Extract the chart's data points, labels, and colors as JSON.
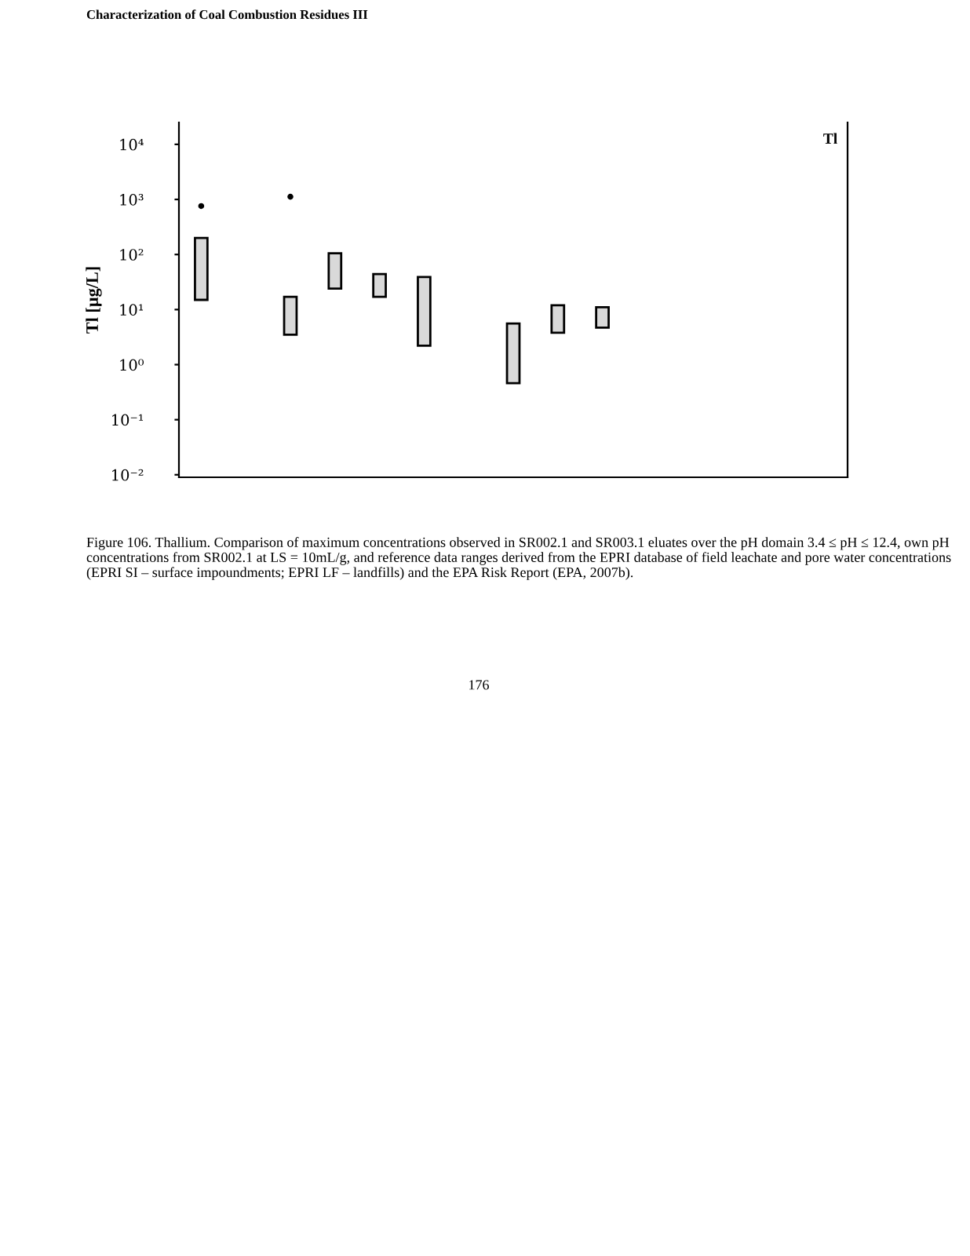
{
  "chart_data": {
    "type": "bar",
    "title": "Characterization of Coal Combustion Residues III",
    "ylabel": "Tl [µg/L]",
    "categories": [
      null,
      null,
      null,
      null,
      null,
      null,
      null,
      null,
      null,
      null,
      null,
      null,
      null,
      null,
      null
    ],
    "series": [
      {
        "type": "bar",
        "color": "#d9d9d9",
        "base": [
          15,
          null,
          3.5,
          24,
          17,
          2.2,
          null,
          0.46,
          3.8,
          4.7,
          null,
          null,
          null,
          null,
          null
        ],
        "values": [
          185,
          null,
          13.5,
          81,
          27,
          36.8,
          null,
          5.14,
          8.2,
          6.3,
          null,
          null,
          null,
          null,
          null
        ]
      },
      {
        "type": "scatter",
        "color": "#000000",
        "values": [
          760,
          null,
          1120,
          null,
          null,
          null,
          null,
          null,
          null,
          null,
          null,
          null,
          null,
          null,
          null
        ]
      }
    ],
    "log": true,
    "ylim": [
      0.009,
      25000
    ],
    "yticks": [
      {
        "value": 0.01,
        "label": "10⁻²"
      },
      {
        "value": 0.1,
        "label": "10⁻¹"
      },
      {
        "value": 1,
        "label": "10⁰"
      },
      {
        "value": 10,
        "label": "10¹"
      },
      {
        "value": 100,
        "label": "10²"
      },
      {
        "value": 1000,
        "label": "10³"
      },
      {
        "value": 10000,
        "label": "10⁴"
      }
    ],
    "tick_labels": "y",
    "grid": false,
    "marker": "circle",
    "annotations": [
      "Tl",
      "Figure 106. Thallium. Comparison of maximum concentrations observed in SR002.1 and SR003.1 eluates over the pH domain 3.4 ≤ pH ≤ 12.4, own pH concentrations from SR002.1 at LS = 10mL/g, and reference data ranges derived from the EPRI database of field leachate and pore water concentrations (EPRI SI – surface impoundments; EPRI LF – landfills) and the EPA Risk Report (EPA, 2007b).",
      "176"
    ]
  }
}
